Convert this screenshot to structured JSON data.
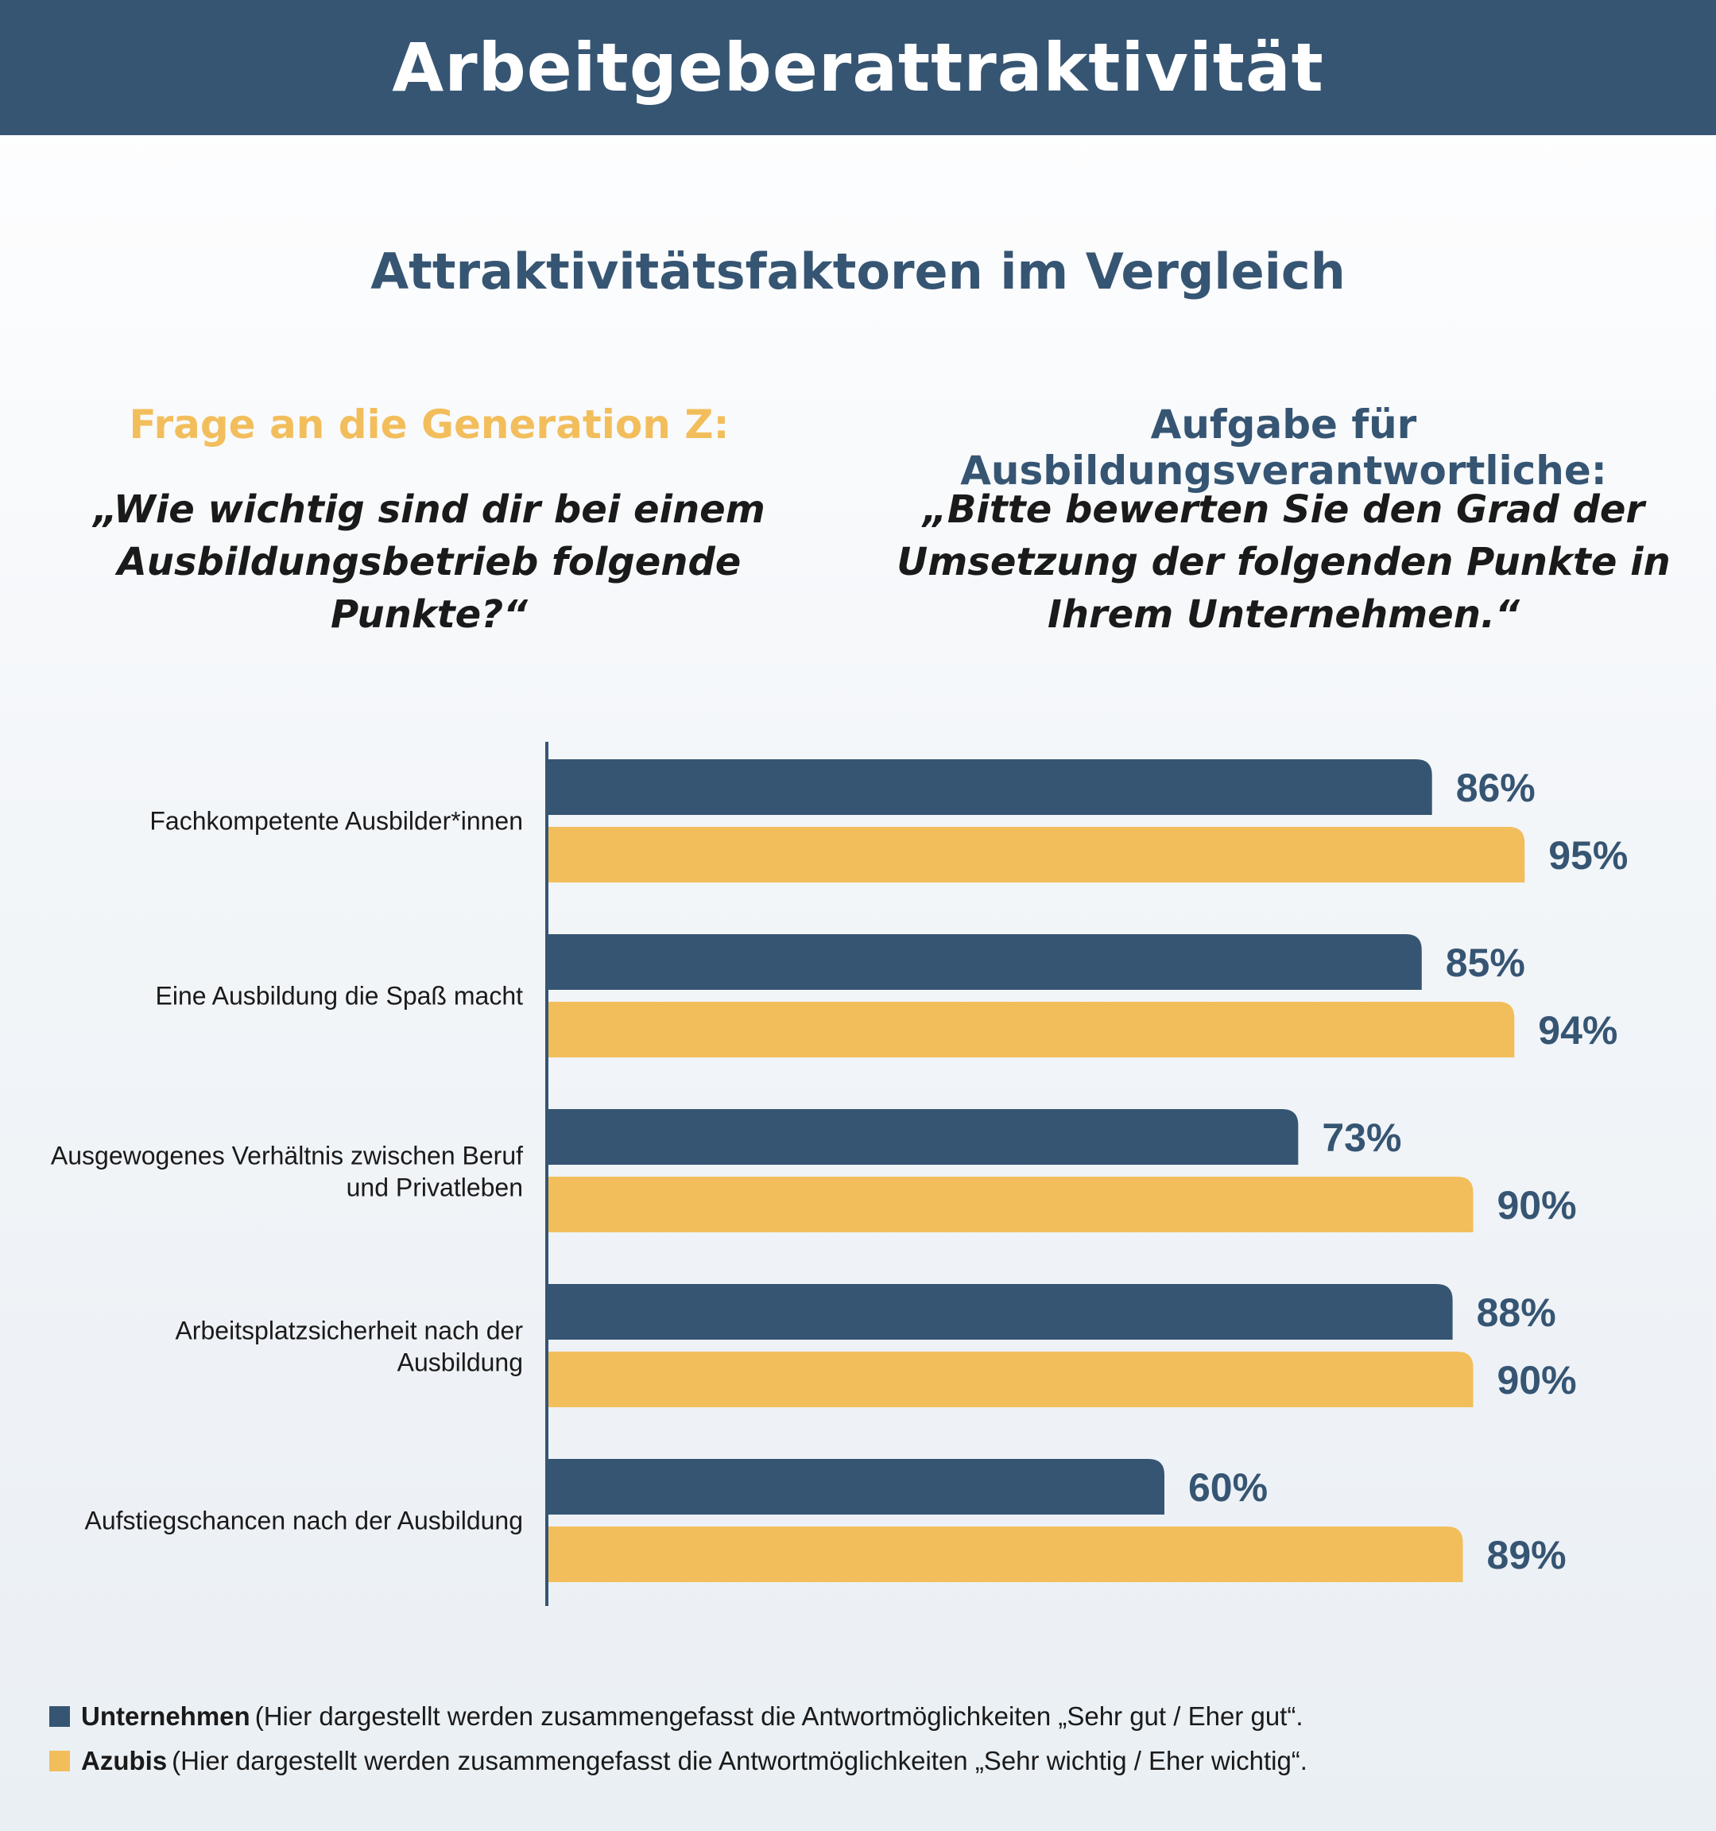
{
  "header": {
    "title": "Arbeitgeberattraktivität"
  },
  "subtitle": "Attraktivitätsfaktoren im Vergleich",
  "left": {
    "heading": "Frage an die Generation Z:",
    "quote": "„Wie wichtig sind dir bei einem Ausbildungsbetrieb folgende Punkte?“"
  },
  "right": {
    "heading": "Aufgabe für Ausbildungsverantwortliche:",
    "quote": "„Bitte bewerten Sie den Grad der Umsetzung der folgenden Punkte in Ihrem Unternehmen.“"
  },
  "colors": {
    "unternehmen": "#365573",
    "azubis": "#f2be5c"
  },
  "chart_data": {
    "type": "bar",
    "orientation": "horizontal",
    "categories": [
      "Fachkompetente Ausbilder*innen",
      "Eine Ausbildung die Spaß macht",
      "Ausgewogenes Verhältnis zwischen Beruf und Privatleben",
      "Arbeitsplatzsicherheit nach der Ausbildung",
      "Aufstiegschancen nach der Ausbildung"
    ],
    "series": [
      {
        "name": "Unternehmen",
        "color": "#365573",
        "values": [
          86,
          85,
          73,
          88,
          60
        ],
        "labels": [
          "86%",
          "85%",
          "73%",
          "88%",
          "60%"
        ]
      },
      {
        "name": "Azubis",
        "color": "#f2be5c",
        "values": [
          95,
          94,
          90,
          90,
          89
        ],
        "labels": [
          "95%",
          "94%",
          "90%",
          "90%",
          "89%"
        ]
      }
    ],
    "xlim": [
      0,
      100
    ],
    "grid": false
  },
  "legend": {
    "items": [
      {
        "name": "Unternehmen",
        "note": "(Hier dargestellt werden zusammengefasst die Antwortmöglichkeiten „Sehr gut / Eher gut“."
      },
      {
        "name": "Azubis",
        "note": "(Hier dargestellt werden zusammengefasst die Antwortmöglichkeiten „Sehr wichtig / Eher wichtig“."
      }
    ]
  }
}
